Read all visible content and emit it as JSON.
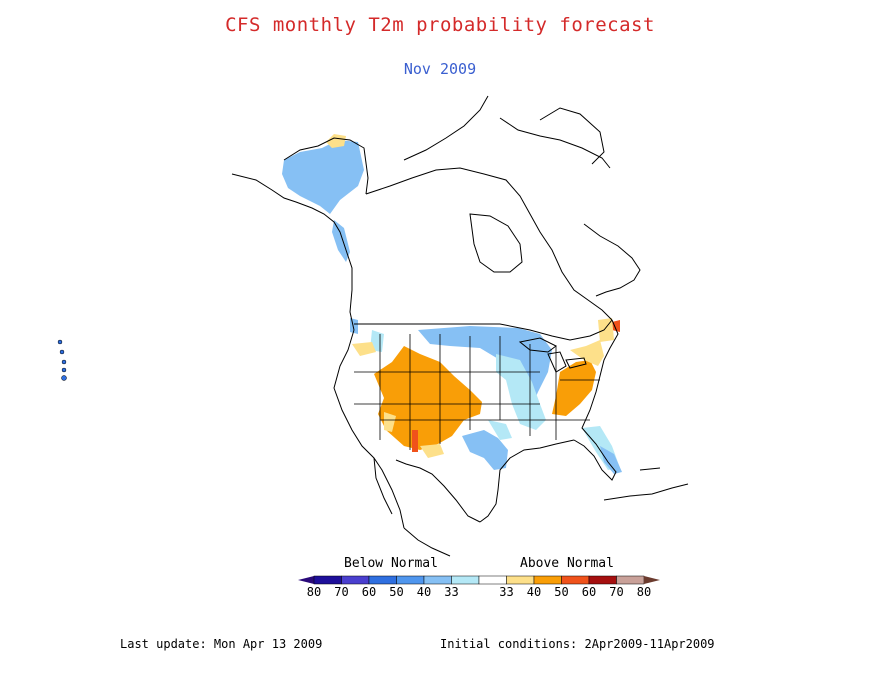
{
  "title": "CFS monthly T2m probability forecast",
  "subtitle": "Nov 2009",
  "legend": {
    "below_label": "Below Normal",
    "above_label": "Above Normal",
    "bins": [
      {
        "label": "80",
        "color": "#1e0f9a"
      },
      {
        "label": "70",
        "color": "#4a3fcf"
      },
      {
        "label": "60",
        "color": "#2f6fe0"
      },
      {
        "label": "50",
        "color": "#4f96ee"
      },
      {
        "label": "40",
        "color": "#86c0f4"
      },
      {
        "label": "33",
        "color": "#b4e8f6"
      },
      {
        "label": "33",
        "color": "#ffffff"
      },
      {
        "label": "40",
        "color": "#fde08a"
      },
      {
        "label": "50",
        "color": "#f99e07"
      },
      {
        "label": "60",
        "color": "#f0521b"
      },
      {
        "label": "70",
        "color": "#a50f0f"
      },
      {
        "label": "80",
        "color": "#c9a199"
      }
    ],
    "end_cap_color_low": "#2a0a7a",
    "end_cap_color_high": "#6b3b2e"
  },
  "footer": {
    "last_update": "Last update: Mon Apr 13 2009",
    "initial_conditions": "Initial conditions: 2Apr2009-11Apr2009"
  },
  "colors": {
    "above_40": "#fde08a",
    "above_50": "#f99e07",
    "above_60": "#f0521b",
    "below_33": "#b4e8f6",
    "below_40": "#86c0f4",
    "coast": "#000000"
  }
}
